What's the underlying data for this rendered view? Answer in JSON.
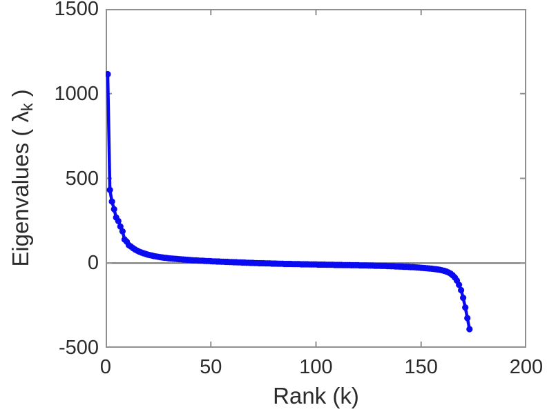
{
  "chart_data": {
    "type": "line",
    "title": "",
    "xlabel": "Rank (k)",
    "ylabel": "Eigenvalues ( λ_k )",
    "xlim": [
      0,
      200
    ],
    "ylim": [
      -500,
      1500
    ],
    "x_ticks": [
      0,
      50,
      100,
      150,
      200
    ],
    "y_ticks": [
      -500,
      0,
      500,
      1000,
      1500
    ],
    "grid": false,
    "legend": false,
    "zero_reference_line": true,
    "marker": "circle",
    "box": true,
    "series": [
      {
        "name": "eigenvalue-spectrum",
        "x_start_rank": 1,
        "values": [
          1115,
          432,
          363,
          318,
          269,
          248,
          216,
          187,
          139,
          126,
          106,
          98,
          88,
          80,
          73,
          67,
          62,
          58,
          54,
          50,
          47,
          44,
          41,
          39,
          37,
          35,
          33,
          31,
          30,
          28,
          27,
          26,
          25,
          24,
          23,
          22,
          21,
          20,
          19,
          18,
          17,
          16,
          16,
          15,
          14,
          14,
          13,
          12,
          12,
          11,
          10,
          10,
          9,
          9,
          8,
          8,
          7,
          7,
          6,
          6,
          5,
          5,
          4,
          4,
          3,
          3,
          2,
          2,
          1,
          1,
          0,
          0,
          -1,
          -1,
          -1,
          -2,
          -2,
          -2,
          -3,
          -3,
          -3,
          -4,
          -4,
          -4,
          -5,
          -5,
          -5,
          -5,
          -6,
          -6,
          -6,
          -6,
          -7,
          -7,
          -7,
          -7,
          -8,
          -8,
          -8,
          -8,
          -9,
          -9,
          -9,
          -9,
          -10,
          -10,
          -10,
          -10,
          -11,
          -11,
          -11,
          -11,
          -12,
          -12,
          -12,
          -12,
          -13,
          -13,
          -13,
          -13,
          -14,
          -14,
          -14,
          -14,
          -15,
          -15,
          -15,
          -16,
          -16,
          -16,
          -17,
          -17,
          -17,
          -18,
          -18,
          -19,
          -19,
          -20,
          -20,
          -21,
          -21,
          -22,
          -22,
          -23,
          -24,
          -24,
          -25,
          -26,
          -27,
          -28,
          -29,
          -30,
          -31,
          -32,
          -33,
          -35,
          -36,
          -38,
          -40,
          -43,
          -46,
          -50,
          -55,
          -62,
          -72,
          -85,
          -103,
          -128,
          -160,
          -205,
          -262,
          -325,
          -390
        ]
      }
    ]
  },
  "labels": {
    "xlabel": "Rank (k)",
    "ylabel_prefix": "Eigenvalues ( λ",
    "ylabel_sub": "k",
    "ylabel_suffix": " )"
  },
  "style": {
    "background": "#ffffff",
    "axis_color": "#8f8f8f",
    "tick_color": "#8f8f8f",
    "text_color": "#2b2b2b",
    "zero_line_color": "#6b6b6b",
    "series_color": "#0a0af0"
  }
}
